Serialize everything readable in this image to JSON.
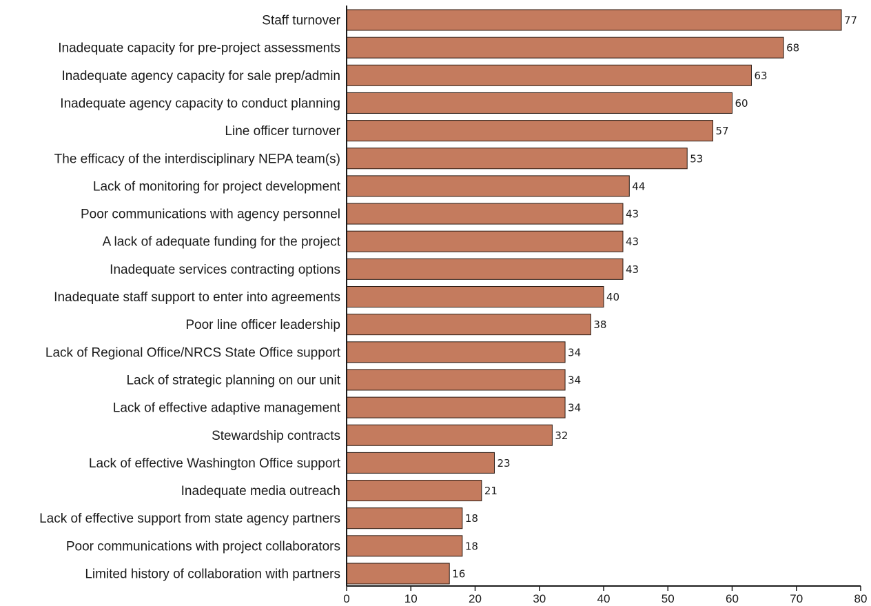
{
  "chart_data": {
    "type": "bar",
    "orientation": "horizontal",
    "title": "",
    "xlabel": "",
    "ylabel": "",
    "xlim": [
      0,
      80
    ],
    "x_ticks": [
      0,
      10,
      20,
      30,
      40,
      50,
      60,
      70,
      80
    ],
    "grid": false,
    "legend": "none",
    "bar_color": "#c47b5e",
    "categories": [
      "Staff turnover",
      "Inadequate capacity for pre-project assessments",
      "Inadequate agency capacity for sale prep/admin",
      "Inadequate agency capacity to conduct planning",
      "Line officer turnover",
      "The efficacy of the interdisciplinary NEPA team(s)",
      "Lack of monitoring for project development",
      "Poor communications with agency personnel",
      "A lack of adequate funding for the project",
      "Inadequate services contracting options",
      "Inadequate staff support to enter into agreements",
      "Poor line officer leadership",
      "Lack of Regional Office/NRCS State Office support",
      "Lack of strategic planning on our unit",
      "Lack of effective adaptive management",
      "Stewardship contracts",
      "Lack of effective Washington Office support",
      "Inadequate media outreach",
      "Lack of effective support from state agency partners",
      "Poor communications with project collaborators",
      "Limited history of collaboration with partners"
    ],
    "values": [
      77,
      68,
      63,
      60,
      57,
      53,
      44,
      43,
      43,
      43,
      40,
      38,
      34,
      34,
      34,
      32,
      23,
      21,
      18,
      18,
      16
    ],
    "data_labels": [
      "77",
      "68",
      "63",
      "60",
      "57",
      "53",
      "44",
      "43",
      "43",
      "43",
      "40",
      "38",
      "34",
      "34",
      "34",
      "32",
      "23",
      "21",
      "18",
      "18",
      "16"
    ]
  }
}
